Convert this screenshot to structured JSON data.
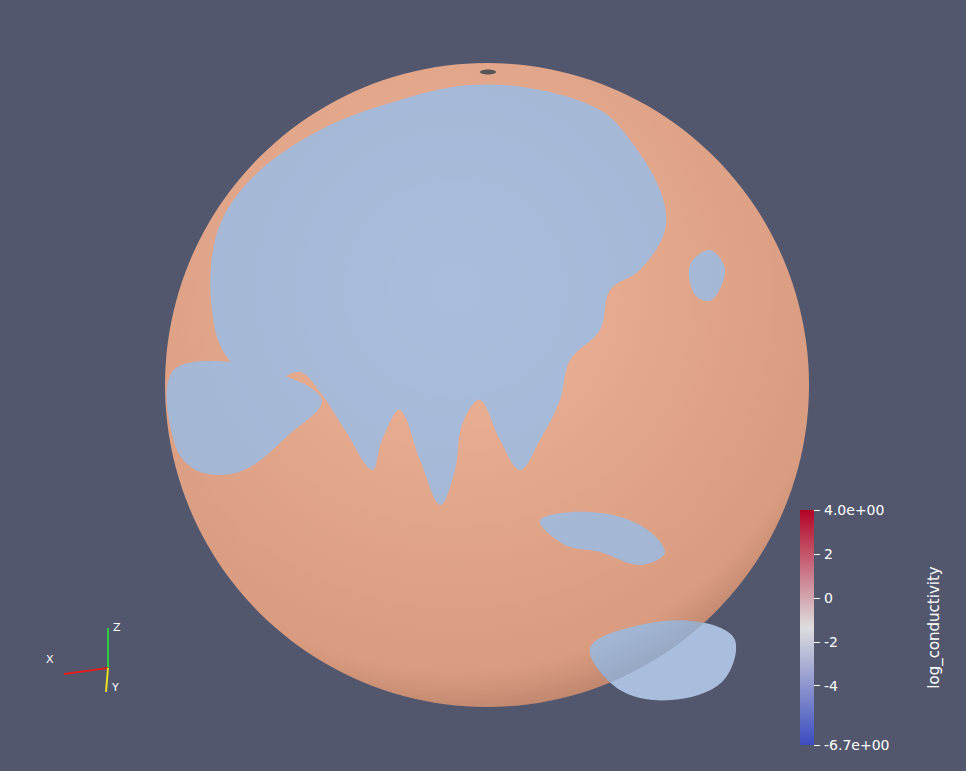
{
  "chart_data": {
    "type": "globe",
    "colorbar": {
      "label": "log_conductivity",
      "range": [
        -6.7,
        4.0
      ],
      "ticks": [
        {
          "value": 4.0,
          "label": "4.0e+00"
        },
        2,
        0,
        -2,
        -4,
        {
          "value": -6.7,
          "label": "-6.7e+00"
        }
      ]
    },
    "axes_labels": [
      "X",
      "Y",
      "Z"
    ]
  }
}
